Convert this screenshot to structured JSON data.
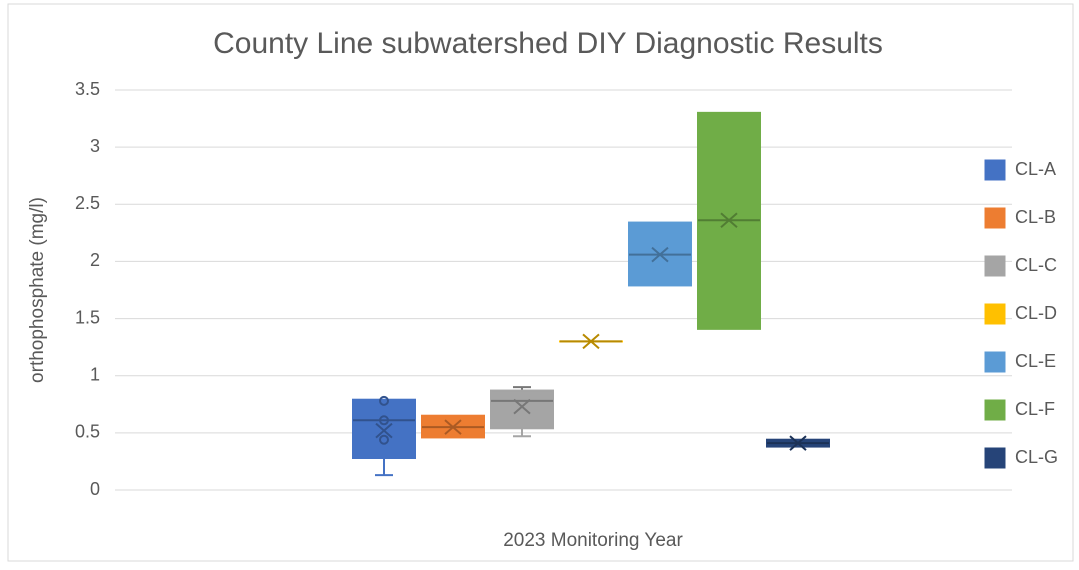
{
  "chart_data": {
    "type": "box",
    "title": "County Line subwatershed DIY Diagnostic Results",
    "x_label": "2023 Monitoring Year",
    "y_label": "orthophosphate (mg/l)",
    "ylim": [
      0,
      3.5
    ],
    "yticks": [
      0,
      0.5,
      1,
      1.5,
      2,
      2.5,
      3,
      3.5
    ],
    "grid": true,
    "legend": "right",
    "series": [
      {
        "name": "CL-A",
        "color": "#4472c4",
        "min": 0.13,
        "q1": 0.28,
        "median": 0.61,
        "q3": 0.79,
        "max": 0.79,
        "mean": 0.52,
        "points": [
          0.44,
          0.61,
          0.78
        ]
      },
      {
        "name": "CL-B",
        "color": "#ed7d31",
        "min": 0.46,
        "q1": 0.46,
        "median": 0.55,
        "q3": 0.65,
        "max": 0.65,
        "mean": 0.55
      },
      {
        "name": "CL-C",
        "color": "#a5a5a5",
        "min": 0.47,
        "q1": 0.54,
        "median": 0.78,
        "q3": 0.87,
        "max": 0.9,
        "mean": 0.73
      },
      {
        "name": "CL-D",
        "color": "#ffc000",
        "min": 1.3,
        "q1": 1.3,
        "median": 1.3,
        "q3": 1.3,
        "max": 1.3,
        "mean": 1.3
      },
      {
        "name": "CL-E",
        "color": "#5b9bd5",
        "min": 1.79,
        "q1": 1.79,
        "median": 2.06,
        "q3": 2.34,
        "max": 2.34,
        "mean": 2.06
      },
      {
        "name": "CL-F",
        "color": "#70ad47",
        "min": 1.41,
        "q1": 1.41,
        "median": 2.36,
        "q3": 3.3,
        "max": 3.3,
        "mean": 2.36
      },
      {
        "name": "CL-G",
        "color": "#264478",
        "min": 0.38,
        "q1": 0.38,
        "median": 0.41,
        "q3": 0.44,
        "max": 0.44,
        "mean": 0.41
      }
    ]
  }
}
